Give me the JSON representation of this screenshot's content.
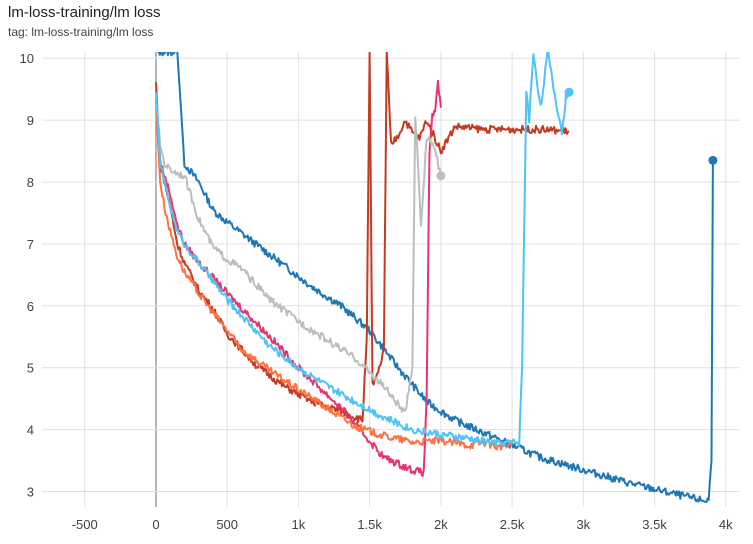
{
  "header": {
    "title": "lm-loss-training/lm loss",
    "subtitle": "tag: lm-loss-training/lm loss"
  },
  "chart_data": {
    "type": "line",
    "title": "lm-loss-training/lm loss",
    "xlabel": "",
    "ylabel": "",
    "xlim": [
      -800,
      4100
    ],
    "ylim": [
      2.75,
      10.1
    ],
    "x_ticks": [
      -500,
      0,
      500,
      1000,
      1500,
      2000,
      2500,
      3000,
      3500,
      4000
    ],
    "x_tick_labels": [
      "-500",
      "0",
      "500",
      "1k",
      "1.5k",
      "2k",
      "2.5k",
      "3k",
      "3.5k",
      "4k"
    ],
    "y_ticks": [
      3,
      4,
      5,
      6,
      7,
      8,
      9,
      10
    ],
    "grid": true,
    "series": [
      {
        "color": "#1f77b4",
        "x": [
          0,
          20,
          40,
          60,
          100,
          150,
          200,
          300,
          400,
          500,
          700,
          900,
          1100,
          1300,
          1500,
          1700,
          1900,
          2100,
          2300,
          2500,
          2700,
          3000,
          3300,
          3600,
          3850,
          3880,
          3900,
          3910
        ],
        "y": [
          10.1,
          10.1,
          10.1,
          10.1,
          10.1,
          10.1,
          8.3,
          8.0,
          7.55,
          7.35,
          7.0,
          6.65,
          6.3,
          6.0,
          5.6,
          5.0,
          4.45,
          4.15,
          3.95,
          3.75,
          3.55,
          3.35,
          3.15,
          2.98,
          2.85,
          2.87,
          3.5,
          8.35
        ],
        "end_point": [
          3910,
          8.35
        ]
      },
      {
        "color": "#c23b22",
        "x": [
          0,
          30,
          60,
          100,
          150,
          200,
          300,
          400,
          500,
          700,
          900,
          1100,
          1300,
          1450,
          1480,
          1500,
          1520,
          1560,
          1600,
          1620,
          1650,
          1700,
          1750,
          1800,
          1850,
          1900,
          2000,
          2100,
          2300,
          2500,
          2700,
          2900
        ],
        "y": [
          9.6,
          8.3,
          8.0,
          7.6,
          7.0,
          6.7,
          6.25,
          5.95,
          5.55,
          5.05,
          4.7,
          4.45,
          4.3,
          4.15,
          5.5,
          10.1,
          4.7,
          4.9,
          5.3,
          10.1,
          8.6,
          8.75,
          9.0,
          8.8,
          8.7,
          9.0,
          8.5,
          8.9,
          8.85,
          8.85,
          8.85,
          8.82
        ]
      },
      {
        "color": "#e8336b",
        "x": [
          0,
          30,
          60,
          100,
          150,
          200,
          300,
          500,
          800,
          1000,
          1300,
          1600,
          1800,
          1880,
          1900,
          1920,
          1940,
          1960,
          1980,
          2000
        ],
        "y": [
          9.3,
          8.3,
          8.1,
          7.8,
          7.3,
          7.0,
          6.7,
          6.2,
          5.5,
          5.0,
          4.35,
          3.55,
          3.35,
          3.3,
          4.5,
          8.5,
          9.1,
          9.1,
          9.6,
          9.2
        ]
      },
      {
        "color": "#ff7043",
        "x": [
          0,
          30,
          60,
          100,
          150,
          200,
          300,
          400,
          500,
          600,
          800,
          1000,
          1200,
          1400,
          1600,
          1800,
          2000,
          2200,
          2300,
          2400,
          2500
        ],
        "y": [
          9.3,
          8.0,
          7.6,
          7.2,
          6.8,
          6.55,
          6.2,
          5.9,
          5.6,
          5.3,
          4.95,
          4.65,
          4.35,
          4.05,
          3.9,
          3.8,
          3.82,
          3.75,
          3.8,
          3.72,
          3.76
        ]
      },
      {
        "color": "#bdbdbd",
        "x": [
          0,
          30,
          60,
          100,
          150,
          200,
          300,
          400,
          500,
          600,
          800,
          1000,
          1200,
          1400,
          1600,
          1750,
          1800,
          1820,
          1840,
          1860,
          1900,
          1950,
          2000
        ],
        "y": [
          9.3,
          8.6,
          8.3,
          8.2,
          8.15,
          8.1,
          7.4,
          6.95,
          6.75,
          6.6,
          6.1,
          5.75,
          5.45,
          5.15,
          4.7,
          4.25,
          5.0,
          9.1,
          8.3,
          7.3,
          8.7,
          8.6,
          8.1
        ],
        "end_point": [
          2000,
          8.1
        ]
      },
      {
        "color": "#4fc3f7",
        "x": [
          0,
          30,
          60,
          100,
          150,
          200,
          300,
          400,
          500,
          600,
          800,
          1000,
          1200,
          1400,
          1600,
          1800,
          2000,
          2200,
          2400,
          2550,
          2570,
          2600,
          2620,
          2650,
          2700,
          2750,
          2800,
          2850,
          2880,
          2900
        ],
        "y": [
          9.5,
          8.3,
          8.0,
          7.6,
          7.2,
          7.0,
          6.7,
          6.4,
          6.1,
          5.85,
          5.35,
          5.0,
          4.7,
          4.45,
          4.2,
          4.0,
          3.92,
          3.85,
          3.78,
          3.8,
          5.0,
          9.5,
          9.0,
          10.1,
          9.2,
          10.1,
          9.4,
          8.8,
          9.4,
          9.45
        ],
        "end_point": [
          2900,
          9.45
        ]
      }
    ]
  }
}
